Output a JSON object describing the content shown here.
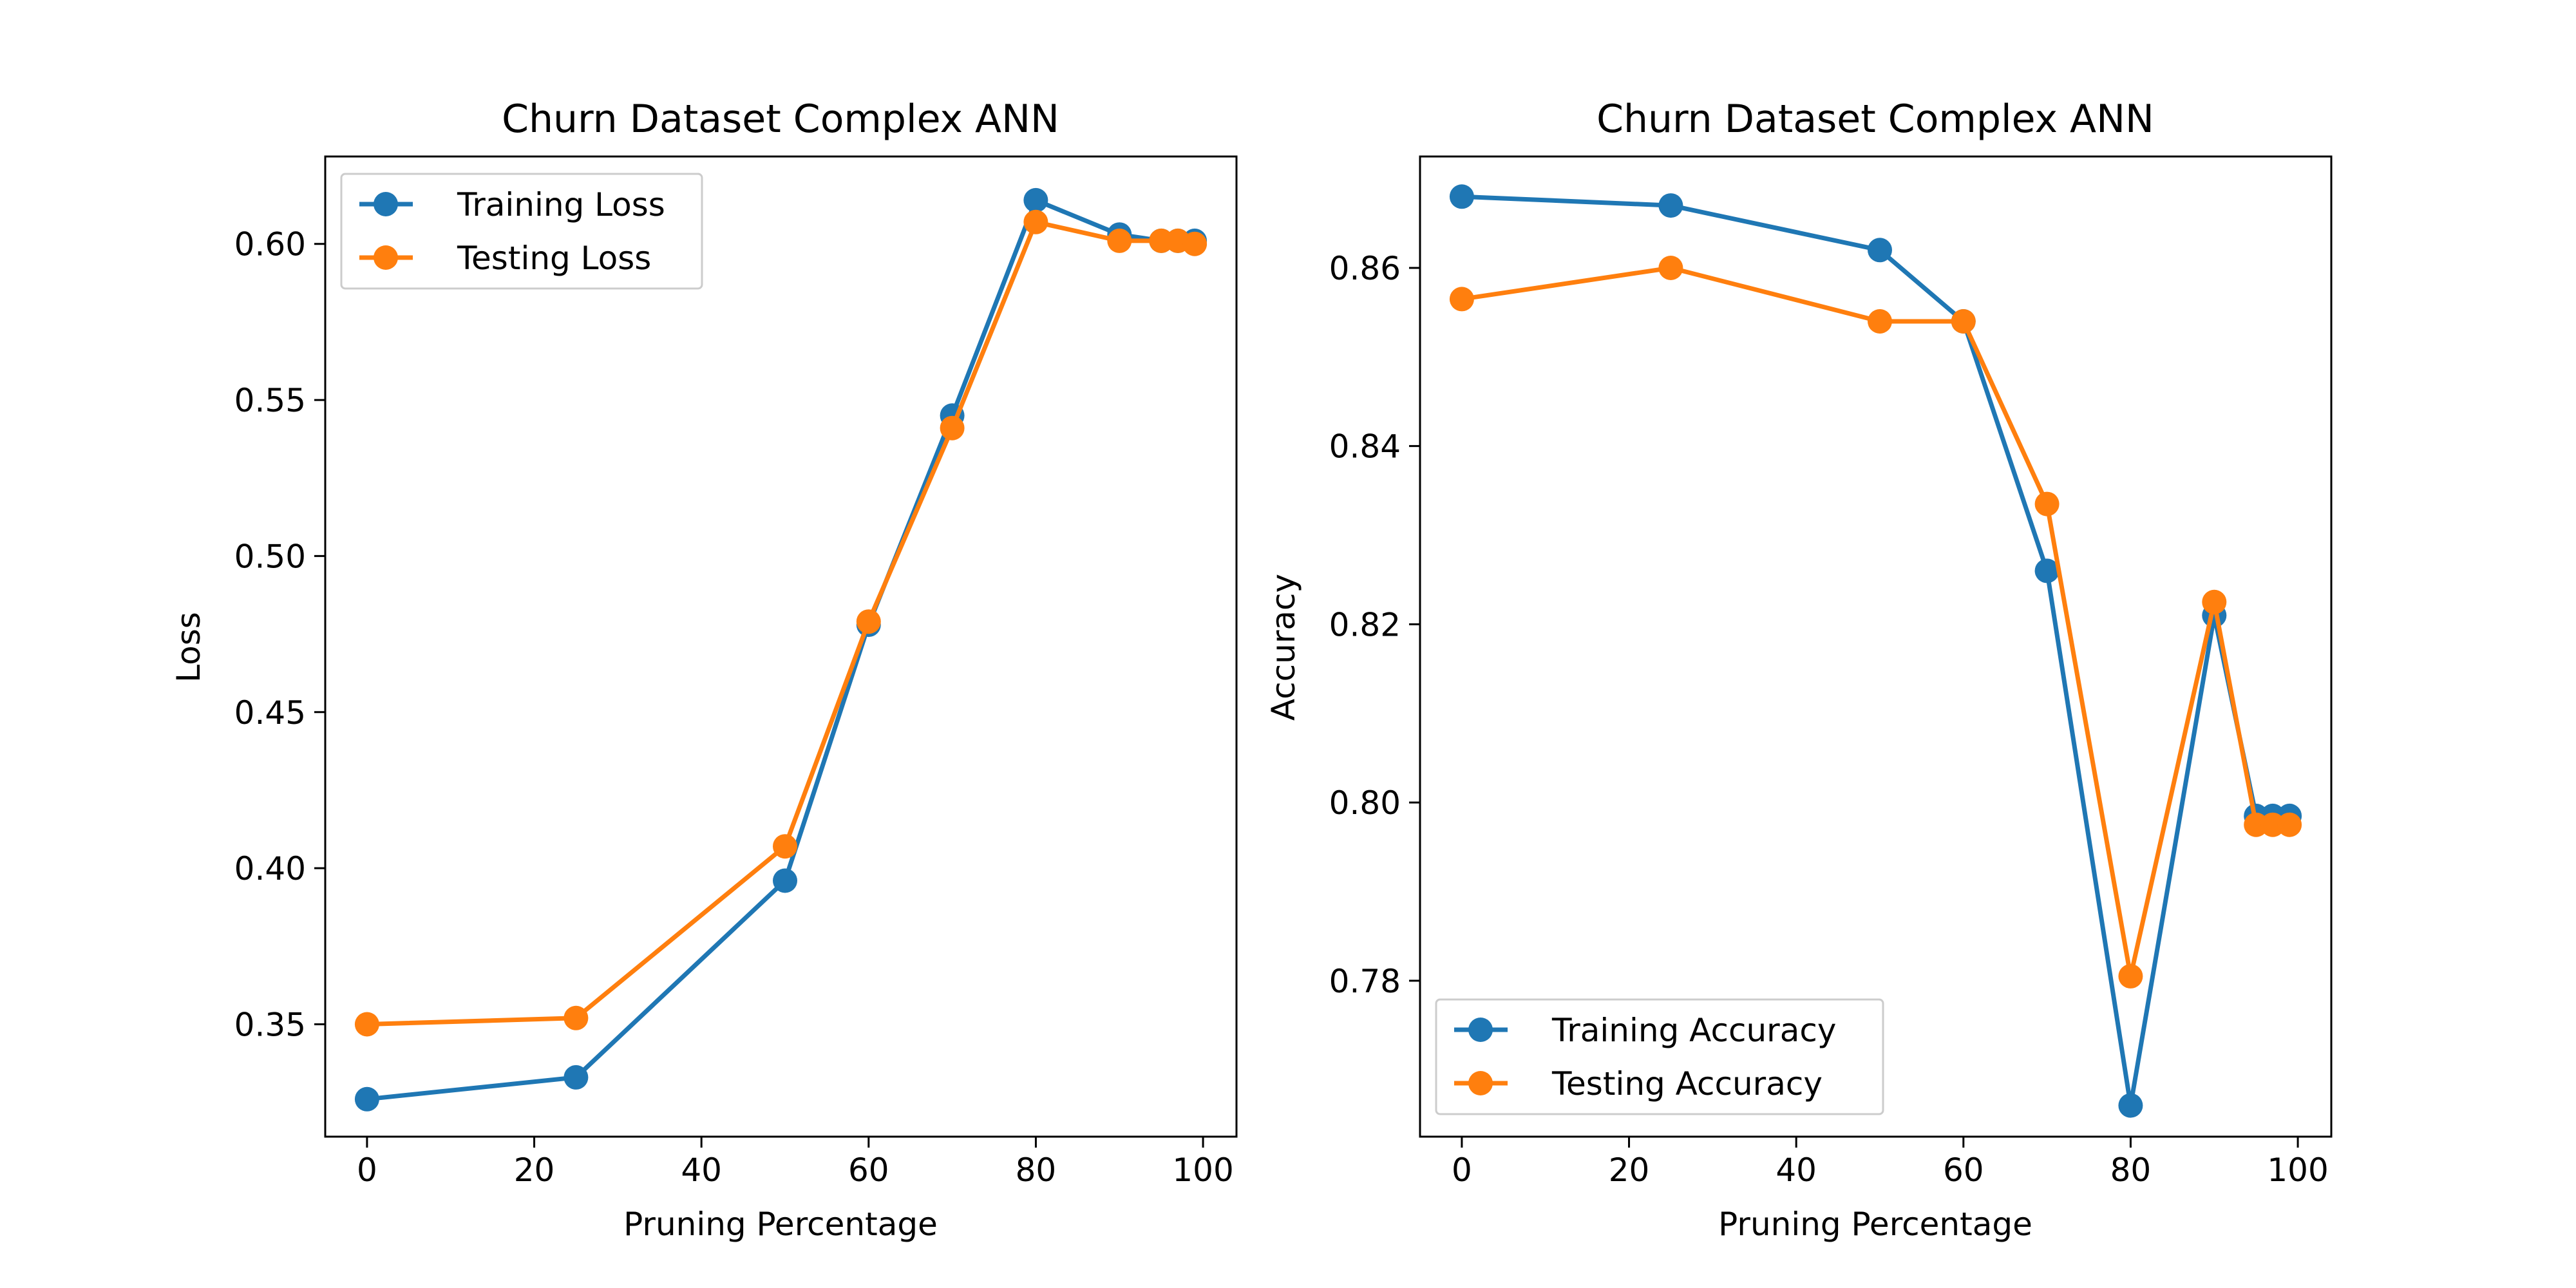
{
  "chart_data": [
    {
      "type": "line",
      "title": "Churn Dataset Complex ANN",
      "xlabel": "Pruning Percentage",
      "ylabel": "Loss",
      "xlim": [
        -5,
        104
      ],
      "ylim": [
        0.314,
        0.628
      ],
      "xticks": [
        0,
        20,
        40,
        60,
        80,
        100
      ],
      "yticks": [
        0.35,
        0.4,
        0.45,
        0.5,
        0.55,
        0.6
      ],
      "ytick_labels": [
        "0.35",
        "0.40",
        "0.45",
        "0.50",
        "0.55",
        "0.60"
      ],
      "grid": false,
      "legend_position": "upper left",
      "x": [
        0,
        25,
        50,
        60,
        70,
        80,
        90,
        95,
        97,
        99
      ],
      "series": [
        {
          "name": "Training Loss",
          "color": "#1f77b4",
          "values": [
            0.326,
            0.333,
            0.396,
            0.478,
            0.545,
            0.614,
            0.603,
            0.601,
            0.601,
            0.601
          ]
        },
        {
          "name": "Testing Loss",
          "color": "#ff7f0e",
          "values": [
            0.35,
            0.352,
            0.407,
            0.479,
            0.541,
            0.607,
            0.601,
            0.601,
            0.601,
            0.6
          ]
        }
      ]
    },
    {
      "type": "line",
      "title": "Churn Dataset Complex ANN",
      "xlabel": "Pruning Percentage",
      "ylabel": "Accuracy",
      "xlim": [
        -5,
        104
      ],
      "ylim": [
        0.7625,
        0.8725
      ],
      "xticks": [
        0,
        20,
        40,
        60,
        80,
        100
      ],
      "yticks": [
        0.78,
        0.8,
        0.82,
        0.84,
        0.86
      ],
      "ytick_labels": [
        "0.78",
        "0.80",
        "0.82",
        "0.84",
        "0.86"
      ],
      "grid": false,
      "legend_position": "lower left",
      "x": [
        0,
        25,
        50,
        60,
        70,
        80,
        90,
        95,
        97,
        99
      ],
      "series": [
        {
          "name": "Training Accuracy",
          "color": "#1f77b4",
          "values": [
            0.868,
            0.867,
            0.862,
            0.854,
            0.826,
            0.766,
            0.821,
            0.7985,
            0.7985,
            0.7985
          ]
        },
        {
          "name": "Testing Accuracy",
          "color": "#ff7f0e",
          "values": [
            0.8565,
            0.86,
            0.854,
            0.854,
            0.8335,
            0.7805,
            0.8225,
            0.7975,
            0.7975,
            0.7975
          ]
        }
      ]
    }
  ]
}
